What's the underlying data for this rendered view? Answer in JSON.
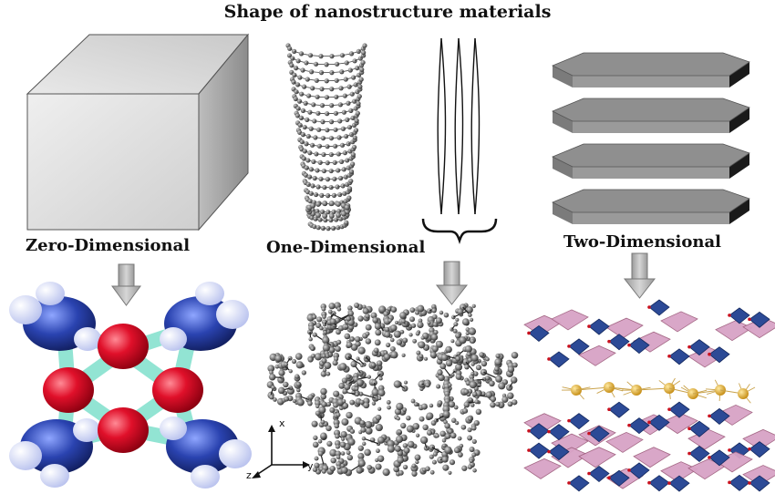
{
  "title": "Shape of nanostructure materials",
  "labels": {
    "zero": "Zero-Dimensional",
    "one": "One-Dimensional",
    "two": "Two-Dimensional"
  },
  "axes": {
    "x": "x",
    "y": "y",
    "z": "z"
  },
  "colors": {
    "cube_front": "#dcdcdc",
    "cube_side": "#a9a9a9",
    "sheet_top": "#8f8f8f",
    "sheet_edge": "#1a1a1a",
    "arrow": "#b8b8b8",
    "molecule_red": "#e0102a",
    "molecule_blue": "#1e3a9e",
    "molecule_cyan": "#7fe0cc",
    "octahedron_blue": "#2c4a96",
    "octahedron_pink": "#d8a3c6",
    "atom_gold": "#e0b030"
  }
}
